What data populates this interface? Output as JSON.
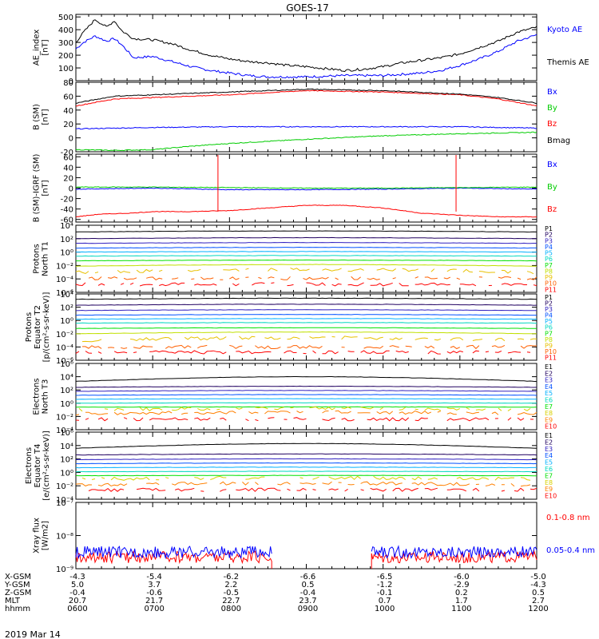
{
  "title": "GOES-17",
  "footer_date": "2019 Mar 14",
  "colors": {
    "black": "#000000",
    "blue": "#0000ff",
    "red": "#ff0000",
    "green": "#00cc00",
    "p_channels": [
      "#000000",
      "#200060",
      "#3020c0",
      "#0050ff",
      "#00b0ff",
      "#00d8c0",
      "#00e000",
      "#c0e000",
      "#e8c000",
      "#ff6000",
      "#ff0000"
    ],
    "e_channels": [
      "#000000",
      "#200060",
      "#3020c0",
      "#0050ff",
      "#00b0ff",
      "#00d8c0",
      "#00e000",
      "#d8d000",
      "#ff8000",
      "#ff0000"
    ]
  },
  "time_axis": {
    "start_hhmm": "0600",
    "end_hhmm": "1200",
    "tick_labels": [
      "0600",
      "0700",
      "0800",
      "0900",
      "1000",
      "1100",
      "1200"
    ]
  },
  "ephemeris": {
    "rows": [
      {
        "label": "X-GSM",
        "values": [
          "-4.3",
          "-5.4",
          "-6.2",
          "-6.6",
          "-6.5",
          "-6.0",
          "-5.0"
        ]
      },
      {
        "label": "Y-GSM",
        "values": [
          "5.0",
          "3.7",
          "2.2",
          "0.5",
          "-1.2",
          "-2.9",
          "-4.3"
        ]
      },
      {
        "label": "Z-GSM",
        "values": [
          "-0.4",
          "-0.6",
          "-0.5",
          "-0.4",
          "-0.1",
          "0.2",
          "0.5"
        ]
      },
      {
        "label": "MLT",
        "values": [
          "20.7",
          "21.7",
          "22.7",
          "23.7",
          "0.7",
          "1.7",
          "2.7"
        ]
      },
      {
        "label": "hhmm",
        "values": [
          "0600",
          "0700",
          "0800",
          "0900",
          "1000",
          "1100",
          "1200"
        ]
      }
    ]
  },
  "chart_data": [
    {
      "id": "ae",
      "type": "line",
      "ylabel_lines": [
        "AE_index",
        "[nT]"
      ],
      "ylim": [
        0,
        520
      ],
      "yticks": [
        0,
        100,
        200,
        300,
        400,
        500
      ],
      "ytick_labels": [
        "0",
        "100",
        "200",
        "300",
        "400",
        "500"
      ],
      "series": [
        {
          "name": "Kyoto AE",
          "color": "#0000ff",
          "x": [
            0,
            0.1,
            0.25,
            0.4,
            0.5,
            0.6,
            0.75,
            1,
            1.25,
            1.5,
            1.75,
            2,
            2.25,
            2.5,
            2.75,
            3,
            3.25,
            3.5,
            3.75,
            4,
            4.25,
            4.5,
            4.75,
            5,
            5.25,
            5.5,
            5.75,
            6
          ],
          "y": [
            250,
            300,
            350,
            310,
            330,
            280,
            180,
            190,
            150,
            110,
            80,
            60,
            40,
            30,
            30,
            30,
            35,
            40,
            40,
            40,
            50,
            60,
            80,
            120,
            170,
            230,
            310,
            360
          ]
        },
        {
          "name": "Themis AE",
          "color": "#000000",
          "x": [
            0,
            0.1,
            0.25,
            0.4,
            0.5,
            0.6,
            0.75,
            1,
            1.25,
            1.5,
            1.75,
            2,
            2.25,
            2.5,
            2.75,
            3,
            3.25,
            3.5,
            3.75,
            4,
            4.25,
            4.5,
            4.75,
            5,
            5.25,
            5.5,
            5.75,
            6
          ],
          "y": [
            300,
            380,
            480,
            420,
            470,
            390,
            330,
            320,
            290,
            240,
            200,
            170,
            150,
            140,
            120,
            110,
            95,
            80,
            90,
            110,
            140,
            160,
            180,
            210,
            260,
            310,
            380,
            420
          ]
        }
      ]
    },
    {
      "id": "bsm",
      "type": "line",
      "ylabel_lines": [
        "B (SM)",
        "[nT]"
      ],
      "ylim": [
        -20,
        80
      ],
      "yticks": [
        -20,
        0,
        20,
        40,
        60,
        80
      ],
      "ytick_labels": [
        "-20",
        "0",
        "20",
        "40",
        "60",
        "80"
      ],
      "series": [
        {
          "name": "Bx",
          "color": "#0000ff",
          "x": [
            0,
            1,
            2,
            3,
            4,
            5,
            6
          ],
          "y": [
            13,
            15,
            16,
            16,
            16,
            16,
            14
          ]
        },
        {
          "name": "By",
          "color": "#00cc00",
          "x": [
            0,
            0.5,
            1,
            1.5,
            2,
            3,
            4,
            5,
            6
          ],
          "y": [
            -17,
            -18,
            -17,
            -12,
            -8,
            -2,
            3,
            6,
            8
          ]
        },
        {
          "name": "Bz",
          "color": "#ff0000",
          "x": [
            0,
            0.5,
            1,
            2,
            3,
            4,
            5,
            5.5,
            6
          ],
          "y": [
            46,
            56,
            58,
            62,
            68,
            66,
            62,
            56,
            46
          ]
        },
        {
          "name": "Bmag",
          "color": "#000000",
          "x": [
            0,
            0.5,
            1,
            2,
            3,
            4,
            5,
            5.5,
            6
          ],
          "y": [
            50,
            60,
            62,
            66,
            70,
            68,
            63,
            58,
            50
          ]
        }
      ]
    },
    {
      "id": "bdiff",
      "type": "line",
      "ylabel_lines": [
        "B (SM)-IGRF (SM)",
        "[nT]"
      ],
      "ylim": [
        -65,
        65
      ],
      "yticks": [
        -60,
        -40,
        -20,
        0,
        20,
        40,
        60
      ],
      "ytick_labels": [
        "-60",
        "-40",
        "-20",
        "0",
        "20",
        "40",
        "60"
      ],
      "series": [
        {
          "name": "Bx",
          "color": "#0000ff",
          "x": [
            0,
            1,
            2,
            3,
            4,
            5,
            6
          ],
          "y": [
            -2,
            0,
            -3,
            -3,
            -2,
            0,
            -2
          ]
        },
        {
          "name": "By",
          "color": "#00cc00",
          "x": [
            0,
            1,
            2,
            3,
            4,
            5,
            6
          ],
          "y": [
            2,
            2,
            1,
            0,
            0,
            1,
            2
          ]
        },
        {
          "name": "Bz",
          "color": "#ff0000",
          "x": [
            0,
            0.3,
            0.7,
            1,
            1.5,
            2,
            2.5,
            3,
            3.5,
            4,
            4.5,
            5,
            5.5,
            6
          ],
          "y": [
            -55,
            -50,
            -48,
            -45,
            -45,
            -43,
            -38,
            -33,
            -33,
            -38,
            -48,
            -52,
            -55,
            -55
          ]
        }
      ]
    },
    {
      "id": "pn",
      "type": "line",
      "log": true,
      "ylabel_lines": [
        "Protons",
        "North T1"
      ],
      "ylim_exp": [
        -6,
        4
      ],
      "ytick_exps": [
        -6,
        -4,
        -2,
        0,
        2,
        4
      ],
      "ytick_labels": [
        "10⁻⁶",
        "10⁻⁴",
        "10⁻²",
        "10⁰",
        "10²",
        "10⁴"
      ],
      "channels": [
        "P1",
        "P2",
        "P3",
        "P4",
        "P5",
        "P6",
        "P7",
        "P8",
        "P9",
        "P10",
        "P11"
      ],
      "levels_log": [
        3.0,
        2.0,
        1.3,
        0.6,
        0.0,
        -0.6,
        -1.3,
        -2.1,
        -3.0,
        -3.9,
        -4.8
      ],
      "curvature": [
        0.15,
        0.15,
        0.12,
        0.1,
        0.08,
        0.08,
        0.1,
        0.25,
        0.4,
        0,
        0
      ]
    },
    {
      "id": "pe",
      "type": "line",
      "log": true,
      "ylabel_lines": [
        "Protons",
        "Equator T2",
        "[p/(cm²-s-sr-keV)]"
      ],
      "ylim_exp": [
        -6,
        4
      ],
      "ytick_exps": [
        -6,
        -4,
        -2,
        0,
        2,
        4
      ],
      "ytick_labels": [
        "10⁻⁶",
        "10⁻⁴",
        "10⁻²",
        "10⁰",
        "10²",
        "10⁴"
      ],
      "channels": [
        "P1",
        "P2",
        "P3",
        "P4",
        "P5",
        "P6",
        "P7",
        "P8",
        "P9",
        "P10",
        "P11"
      ],
      "levels_log": [
        3.2,
        2.3,
        1.5,
        0.8,
        0.2,
        -0.4,
        -1.2,
        -2.0,
        -3.0,
        -4.0,
        -4.8
      ],
      "curvature": [
        0.15,
        0.15,
        0.12,
        0.1,
        0.08,
        0.08,
        0.1,
        0.25,
        0.4,
        0,
        0
      ]
    },
    {
      "id": "en",
      "type": "line",
      "log": true,
      "ylabel_lines": [
        "Electrons",
        "North T3"
      ],
      "ylim_exp": [
        -4,
        6
      ],
      "ytick_exps": [
        -4,
        -2,
        0,
        2,
        4,
        6
      ],
      "ytick_labels": [
        "10⁻⁴",
        "10⁻²",
        "10⁰",
        "10²",
        "10⁴",
        "10⁶"
      ],
      "channels": [
        "E1",
        "E2",
        "E3",
        "E4",
        "E5",
        "E6",
        "E7",
        "E8",
        "E9",
        "E10"
      ],
      "levels_log": [
        3.3,
        2.4,
        1.8,
        1.2,
        0.6,
        0.0,
        -0.6,
        -1.0,
        -1.6,
        -2.4
      ],
      "curvature": [
        0.7,
        0.15,
        0.12,
        0.1,
        0.08,
        0.06,
        0.05,
        0.2,
        0.25,
        0
      ]
    },
    {
      "id": "ee",
      "type": "line",
      "log": true,
      "ylabel_lines": [
        "Electrons",
        "Equator T4",
        "[e/(cm²-s-sr-keV)]"
      ],
      "ylim_exp": [
        -4,
        6
      ],
      "ytick_exps": [
        -4,
        -2,
        0,
        2,
        4,
        6
      ],
      "ytick_labels": [
        "10⁻⁴",
        "10⁻²",
        "10⁰",
        "10²",
        "10⁴",
        "10⁶"
      ],
      "channels": [
        "E1",
        "E2",
        "E3",
        "E4",
        "E5",
        "E6",
        "E7",
        "E8",
        "E9",
        "E10"
      ],
      "levels_log": [
        3.6,
        2.6,
        1.9,
        1.3,
        0.7,
        0.1,
        -0.5,
        -1.0,
        -1.9,
        -2.6
      ],
      "curvature": [
        0.7,
        0.15,
        0.12,
        0.1,
        0.08,
        0.06,
        0.05,
        0.2,
        0.3,
        0
      ]
    },
    {
      "id": "xray",
      "type": "line",
      "log": true,
      "ylabel_lines": [
        "Xray flux",
        "[W/m2]"
      ],
      "ylim_exp": [
        -9,
        -7
      ],
      "ytick_exps": [
        -9,
        -8,
        -7
      ],
      "ytick_labels": [
        "10⁻⁹",
        "10⁻⁸",
        "10⁻⁷"
      ],
      "series": [
        {
          "name": "0.1-0.8 nm",
          "color": "#ff0000",
          "log_level": -8.65,
          "gap": [
            2.55,
            3.85
          ]
        },
        {
          "name": "0.05-0.4 nm",
          "color": "#0000ff",
          "log_level": -8.5,
          "gap": [
            2.55,
            3.85
          ]
        }
      ]
    }
  ]
}
